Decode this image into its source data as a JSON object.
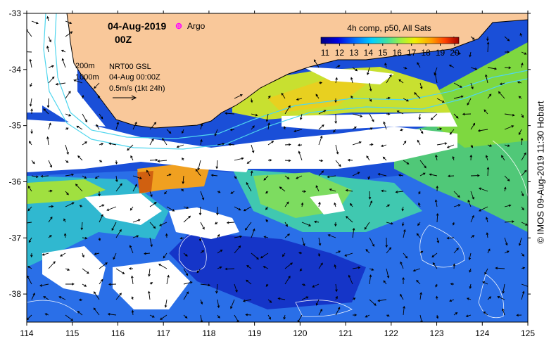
{
  "map": {
    "date": "04-Aug-2019",
    "time": "00Z",
    "argo_label": "Argo",
    "composite_label": "4h comp, p50, All Sats",
    "colorbar_ticks": [
      "11",
      "12",
      "13",
      "14",
      "15",
      "16",
      "17",
      "18",
      "19",
      "20"
    ],
    "colorbar_range": [
      11,
      20
    ],
    "x_ticks": [
      "114",
      "115",
      "116",
      "117",
      "118",
      "119",
      "120",
      "121",
      "122",
      "123",
      "124",
      "125"
    ],
    "y_ticks": [
      "-33",
      "-34",
      "-35",
      "-36",
      "-37",
      "-38"
    ],
    "lon_range": [
      114,
      125
    ],
    "lat_range": [
      -38.5,
      -33
    ],
    "depth_labels": [
      "200m",
      "1000m"
    ],
    "product_label": "NRT00 GSL",
    "product_time": "04-Aug 00:00Z",
    "scale_label": "0.5m/s (1kt 24h)",
    "credit": "© IMOS 09-Aug-2019 11:30 Hobart",
    "colors": {
      "land": "#f9c89a",
      "coastline": "#000000",
      "isobath": "#4fd6ee",
      "cloud": "#ffffff",
      "argo_marker": "#ff00ff"
    }
  }
}
